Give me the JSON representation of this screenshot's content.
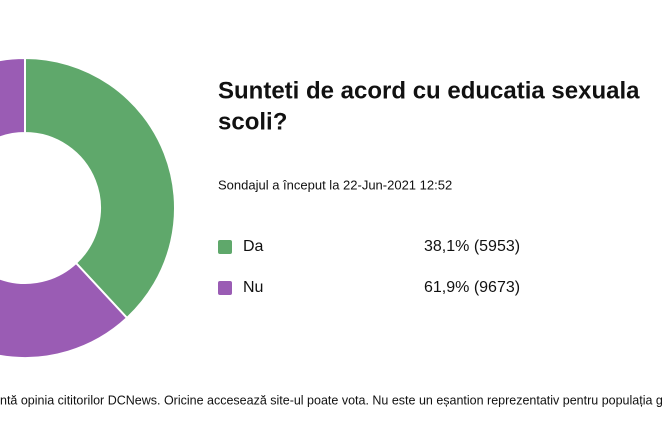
{
  "chart_data": {
    "type": "pie",
    "donut": true,
    "title_lines": [
      "Sunteti de acord cu educatia sexuala",
      "scoli?"
    ],
    "subtitle": "Sondajul a început la 22-Jun-2021 12:52",
    "categories": [
      "Da",
      "Nu"
    ],
    "values": [
      38.1,
      61.9
    ],
    "value_labels": [
      "38,1% (5953)",
      "61,9% (9673)"
    ],
    "colors": [
      "#5fa86b",
      "#9a5cb4"
    ],
    "footnote": "ntă opinia cititorilor DCNews. Oricine accesează site-ul poate vota. Nu este un eșantion reprezentativ pentru populația g"
  }
}
